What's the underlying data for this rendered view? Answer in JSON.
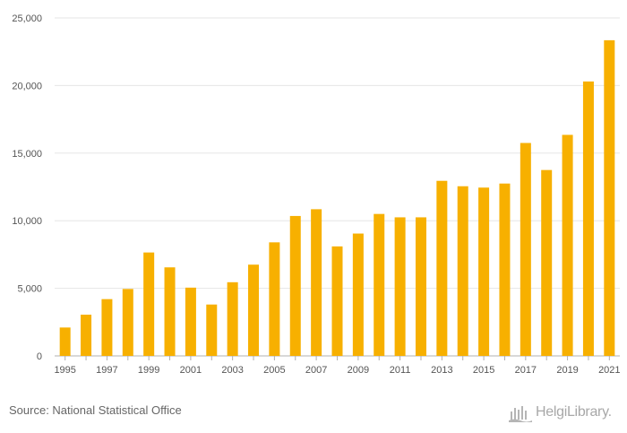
{
  "chart_data": {
    "type": "bar",
    "categories": [
      "1995",
      "1996",
      "1997",
      "1998",
      "1999",
      "2000",
      "2001",
      "2002",
      "2003",
      "2004",
      "2005",
      "2006",
      "2007",
      "2008",
      "2009",
      "2010",
      "2011",
      "2012",
      "2013",
      "2014",
      "2015",
      "2016",
      "2017",
      "2018",
      "2019",
      "2020",
      "2021"
    ],
    "values": [
      2100,
      3050,
      4200,
      4950,
      7650,
      6550,
      5050,
      3800,
      5450,
      6750,
      8400,
      10350,
      10850,
      8100,
      9050,
      10500,
      10250,
      10250,
      12950,
      12550,
      12450,
      12750,
      15750,
      13750,
      16350,
      20300,
      23350
    ],
    "x_tick_labels": [
      "1995",
      "1997",
      "1999",
      "2001",
      "2003",
      "2005",
      "2007",
      "2009",
      "2011",
      "2013",
      "2015",
      "2017",
      "2019",
      "2021"
    ],
    "y_ticks": [
      0,
      5000,
      10000,
      15000,
      20000,
      25000
    ],
    "y_tick_labels": [
      "0",
      "5,000",
      "10,000",
      "15,000",
      "20,000",
      "25,000"
    ],
    "ylim": [
      0,
      25000
    ],
    "title": "",
    "xlabel": "",
    "ylabel": "",
    "grid": true,
    "bar_color": "#f7b000",
    "grid_color": "#e6e6e6",
    "axis_color": "#b0b0b0"
  },
  "footer": {
    "source": "Source: National Statistical Office",
    "brand": "HelgiLibrary."
  }
}
